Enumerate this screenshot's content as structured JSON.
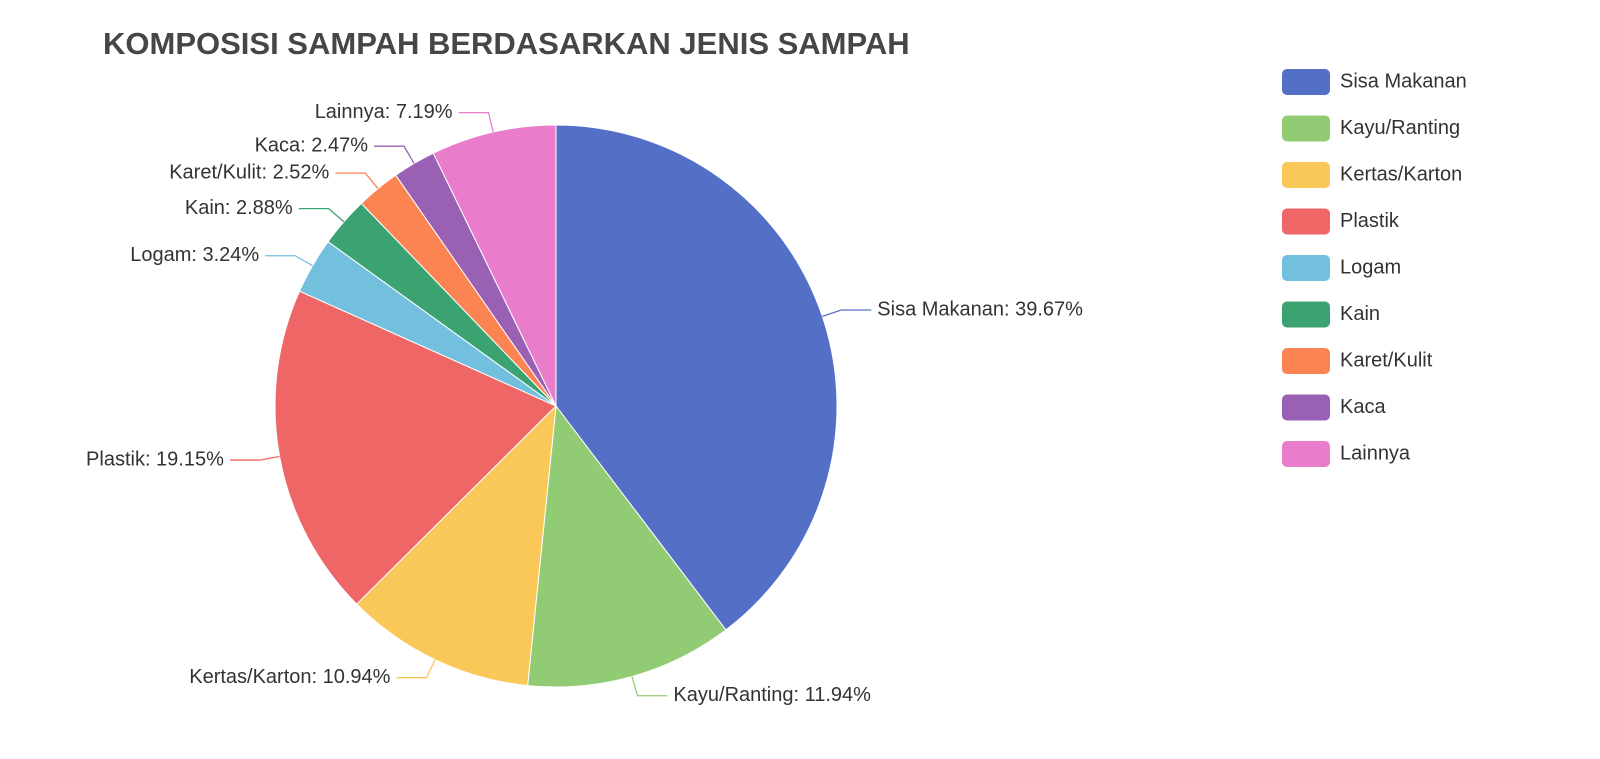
{
  "chart_data": {
    "type": "pie",
    "title": "KOMPOSISI SAMPAH BERDASARKAN JENIS SAMPAH",
    "categories": [
      "Sisa Makanan",
      "Kayu/Ranting",
      "Kertas/Karton",
      "Plastik",
      "Logam",
      "Kain",
      "Karet/Kulit",
      "Kaca",
      "Lainnya"
    ],
    "values": [
      39.67,
      11.94,
      10.94,
      19.15,
      3.24,
      2.88,
      2.52,
      2.47,
      7.19
    ],
    "value_labels": [
      "Sisa Makanan: 39.67%",
      "Kayu/Ranting: 11.94%",
      "Kertas/Karton: 10.94%",
      "Plastik: 19.15%",
      "Logam: 3.24%",
      "Kain: 2.88%",
      "Karet/Kulit: 2.52%",
      "Kaca: 2.47%",
      "Lainnya: 7.19%"
    ],
    "colors": [
      "#5470c6",
      "#91cc75",
      "#fac858",
      "#ee6666",
      "#73c0de",
      "#3ba272",
      "#fc8452",
      "#9a60b4",
      "#ea7ccc"
    ],
    "legend": "right"
  }
}
